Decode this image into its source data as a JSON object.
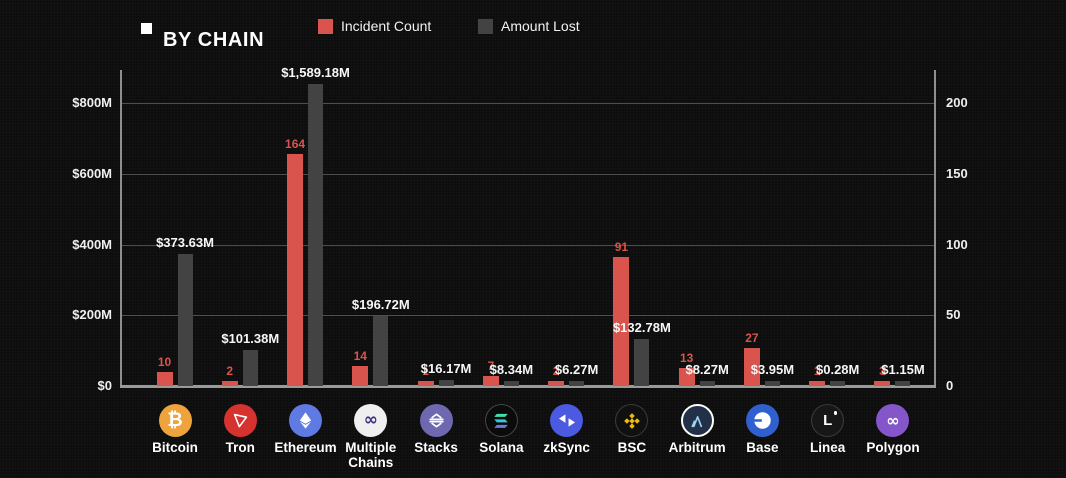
{
  "header": {
    "title": "BY CHAIN"
  },
  "legend": {
    "items": [
      {
        "label": "Incident Count",
        "color": "#d9544d"
      },
      {
        "label": "Amount Lost",
        "color": "#434343"
      }
    ]
  },
  "axes": {
    "left": {
      "ticks": [
        {
          "label": "$0",
          "value": 0
        },
        {
          "label": "$200M",
          "value": 200
        },
        {
          "label": "$400M",
          "value": 400
        },
        {
          "label": "$600M",
          "value": 600
        },
        {
          "label": "$800M",
          "value": 800
        }
      ]
    },
    "right": {
      "ticks": [
        {
          "label": "0",
          "value": 0
        },
        {
          "label": "50",
          "value": 50
        },
        {
          "label": "100",
          "value": 100
        },
        {
          "label": "150",
          "value": 150
        },
        {
          "label": "200",
          "value": 200
        }
      ]
    }
  },
  "chart_data": {
    "type": "bar",
    "title": "BY CHAIN",
    "categories": [
      "Bitcoin",
      "Tron",
      "Ethereum",
      "Multiple Chains",
      "Stacks",
      "Solana",
      "zkSync",
      "BSC",
      "Arbitrum",
      "Base",
      "Linea",
      "Polygon"
    ],
    "series": [
      {
        "name": "Incident Count",
        "axis": "right",
        "color": "#d9544d",
        "values": [
          10,
          2,
          164,
          14,
          1,
          7,
          2,
          91,
          13,
          27,
          1,
          3
        ]
      },
      {
        "name": "Amount Lost",
        "axis": "left",
        "color": "#434343",
        "units": "USD millions",
        "values": [
          373.63,
          101.38,
          1589.18,
          196.72,
          16.17,
          8.34,
          6.27,
          132.78,
          8.27,
          3.95,
          0.28,
          1.15
        ],
        "labels": [
          "$373.63M",
          "$101.38M",
          "$1,589.18M",
          "$196.72M",
          "$16.17M",
          "$8.34M",
          "$6.27M",
          "$132.78M",
          "$8.27M",
          "$3.95M",
          "$0.28M",
          "$1.15M"
        ]
      }
    ],
    "ylim_left": [
      0,
      800
    ],
    "ylim_right": [
      0,
      200
    ],
    "grid": true,
    "legend_position": "top"
  },
  "chains": [
    {
      "name": "Bitcoin",
      "icon": "bitcoin-icon",
      "bg": "#efa33c"
    },
    {
      "name": "Tron",
      "icon": "tron-icon",
      "bg": "#d63230"
    },
    {
      "name": "Ethereum",
      "icon": "ethereum-icon",
      "bg": "#5f7ae3"
    },
    {
      "name": "Multiple Chains",
      "icon": "multiple-chains-icon",
      "bg": "#efefef"
    },
    {
      "name": "Stacks",
      "icon": "stacks-icon",
      "bg": "#6d68b0"
    },
    {
      "name": "Solana",
      "icon": "solana-icon",
      "bg": "#0b0b0b"
    },
    {
      "name": "zkSync",
      "icon": "zksync-icon",
      "bg": "#4b5ae0"
    },
    {
      "name": "BSC",
      "icon": "bsc-icon",
      "bg": "#101010"
    },
    {
      "name": "Arbitrum",
      "icon": "arbitrum-icon",
      "bg": "#213147"
    },
    {
      "name": "Base",
      "icon": "base-icon",
      "bg": "#3060d0"
    },
    {
      "name": "Linea",
      "icon": "linea-icon",
      "bg": "#171717"
    },
    {
      "name": "Polygon",
      "icon": "polygon-icon",
      "bg": "#8456c9"
    }
  ]
}
